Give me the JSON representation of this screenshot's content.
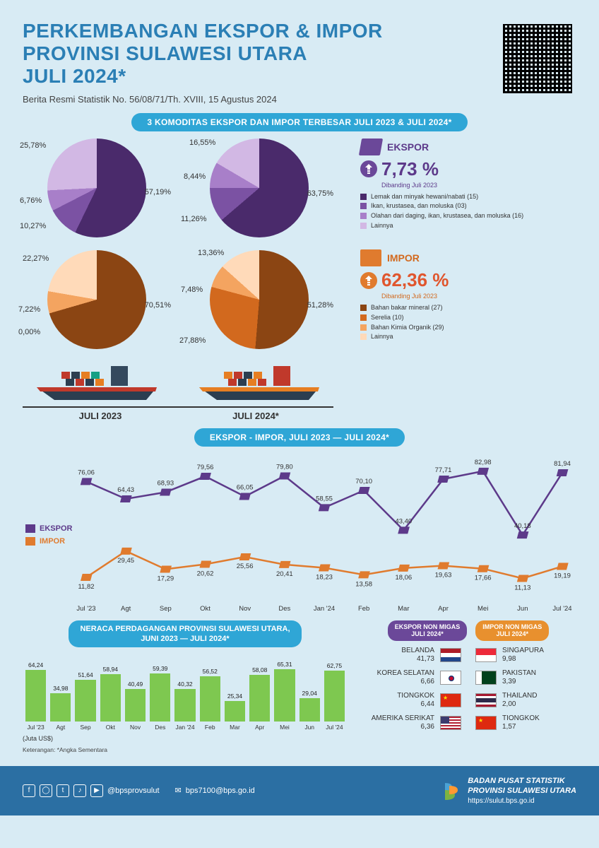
{
  "header": {
    "title_line1": "PERKEMBANGAN EKSPOR & IMPOR",
    "title_line2": "PROVINSI SULAWESI UTARA",
    "title_line3": "JULI 2024*",
    "subtitle": "Berita Resmi Statistik No. 56/08/71/Th. XVIII, 15 Agustus 2024"
  },
  "section1": {
    "banner": "3 KOMODITAS EKSPOR DAN IMPOR TERBESAR JULI 2023 & JULI 2024*",
    "ekspor_pies": {
      "colors": [
        "#4a2a6b",
        "#7b52a3",
        "#a87fc9",
        "#d2b8e4"
      ],
      "y2023": {
        "values": [
          57.19,
          10.27,
          6.76,
          25.78
        ],
        "labels": [
          "57,19%",
          "10,27%",
          "6,76%",
          "25,78%"
        ]
      },
      "y2024": {
        "values": [
          63.75,
          11.26,
          8.44,
          16.55
        ],
        "labels": [
          "63,75%",
          "11,26%",
          "8,44%",
          "16,55%"
        ]
      }
    },
    "impor_pies": {
      "colors": [
        "#8b4513",
        "#d2691e",
        "#f4a460",
        "#ffdab9"
      ],
      "y2023": {
        "values": [
          70.51,
          0.0,
          7.22,
          22.27
        ],
        "labels": [
          "70,51%",
          "0,00%",
          "7,22%",
          "22,27%"
        ]
      },
      "y2024": {
        "values": [
          51.28,
          27.88,
          7.48,
          13.36
        ],
        "labels": [
          "51,28%",
          "27,88%",
          "7,48%",
          "13,36%"
        ]
      }
    },
    "year_2023": "JULI 2023",
    "year_2024": "JULI 2024*",
    "ekspor_metric": {
      "title": "EKSPOR",
      "title_color": "#5d3a8a",
      "icon_color": "#6b4899",
      "pct": "7,73 %",
      "pct_color": "#5d3a8a",
      "arrow_bg": "#6b4899",
      "sub": "Dibanding Juli 2023",
      "legend": [
        {
          "c": "#4a2a6b",
          "t": "Lemak dan minyak hewani/nabati (15)"
        },
        {
          "c": "#7b52a3",
          "t": "Ikan, krustasea, dan moluska (03)"
        },
        {
          "c": "#a87fc9",
          "t": "Olahan dari daging, ikan, krustasea, dan moluska (16)"
        },
        {
          "c": "#d2b8e4",
          "t": "Lainnya"
        }
      ]
    },
    "impor_metric": {
      "title": "IMPOR",
      "title_color": "#d2691e",
      "icon_color": "#e07b2e",
      "pct": "62,36 %",
      "pct_color": "#e0562e",
      "arrow_bg": "#e07b2e",
      "sub": "Dibanding Juli 2023",
      "legend": [
        {
          "c": "#8b4513",
          "t": "Bahan bakar mineral (27)"
        },
        {
          "c": "#d2691e",
          "t": "Serelia (10)"
        },
        {
          "c": "#f4a460",
          "t": "Bahan Kimia Organik (29)"
        },
        {
          "c": "#ffdab9",
          "t": "Lainnya"
        }
      ]
    }
  },
  "section2": {
    "banner": "EKSPOR - IMPOR, JULI 2023 — JULI 2024*",
    "months": [
      "Jul '23",
      "Agt",
      "Sep",
      "Okt",
      "Nov",
      "Des",
      "Jan '24",
      "Feb",
      "Mar",
      "Apr",
      "Mei",
      "Jun",
      "Jul '24"
    ],
    "ekspor": {
      "color": "#5d3a8a",
      "label": "EKSPOR",
      "values": [
        76.06,
        64.43,
        68.93,
        79.56,
        66.05,
        79.8,
        58.55,
        70.1,
        43.4,
        77.71,
        82.98,
        40.18,
        81.94
      ],
      "display": [
        "76,06",
        "64,43",
        "68,93",
        "79,56",
        "66,05",
        "79,80",
        "58,55",
        "70,10",
        "43,40",
        "77,71",
        "82,98",
        "40,18",
        "81,94"
      ]
    },
    "impor": {
      "color": "#e07b2e",
      "label": "IMPOR",
      "values": [
        11.82,
        29.45,
        17.29,
        20.62,
        25.56,
        20.41,
        18.23,
        13.58,
        18.06,
        19.63,
        17.66,
        11.13,
        19.19
      ],
      "display": [
        "11,82",
        "29,45",
        "17,29",
        "20,62",
        "25,56",
        "20,41",
        "18,23",
        "13,58",
        "18,06",
        "19,63",
        "17,66",
        "11,13",
        "19,19"
      ]
    },
    "ylim": [
      0,
      90
    ]
  },
  "section3": {
    "banner_line1": "NERACA PERDAGANGAN PROVINSI SULAWESI UTARA,",
    "banner_line2": "JUNI 2023 — JULI 2024*",
    "months": [
      "Jul '23",
      "Agt",
      "Sep",
      "Okt",
      "Nov",
      "Des",
      "Jan '24",
      "Feb",
      "Mar",
      "Apr",
      "Mei",
      "Jun",
      "Jul '24"
    ],
    "values": [
      64.24,
      34.98,
      51.64,
      58.94,
      40.49,
      59.39,
      40.32,
      56.52,
      25.34,
      58.08,
      65.31,
      29.04,
      62.75
    ],
    "display": [
      "64,24",
      "34,98",
      "51,64",
      "58,94",
      "40,49",
      "59,39",
      "40,32",
      "56,52",
      "25,34",
      "58,08",
      "65,31",
      "29,04",
      "62,75"
    ],
    "bar_color": "#7ec850",
    "unit": "(Juta US$)",
    "note": "Keterangan: *Angka Sementara",
    "ymax": 70
  },
  "countries": {
    "ekspor_head": "EKSPOR NON MIGAS\nJULI 2024*",
    "ekspor_head_color": "#6b4899",
    "impor_head": "IMPOR NON MIGAS\nJULI 2024*",
    "impor_head_color": "#e8902e",
    "ekspor": [
      {
        "name": "BELANDA",
        "val": "41,73",
        "flag": "flag-nl"
      },
      {
        "name": "KOREA SELATAN",
        "val": "6,66",
        "flag": "flag-kr"
      },
      {
        "name": "TIONGKOK",
        "val": "6,44",
        "flag": "flag-cn"
      },
      {
        "name": "AMERIKA SERIKAT",
        "val": "6,36",
        "flag": "flag-us"
      }
    ],
    "impor": [
      {
        "name": "SINGAPURA",
        "val": "9,98",
        "flag": "flag-sg"
      },
      {
        "name": "PAKISTAN",
        "val": "3,39",
        "flag": "flag-pk"
      },
      {
        "name": "THAILAND",
        "val": "2,00",
        "flag": "flag-th"
      },
      {
        "name": "TIONGKOK",
        "val": "1,57",
        "flag": "flag-cn"
      }
    ]
  },
  "footer": {
    "handle": "@bpsprovsulut",
    "email": "bps7100@bps.go.id",
    "org1": "BADAN PUSAT STATISTIK",
    "org2": "PROVINSI SULAWESI UTARA",
    "url": "https://sulut.bps.go.id"
  }
}
